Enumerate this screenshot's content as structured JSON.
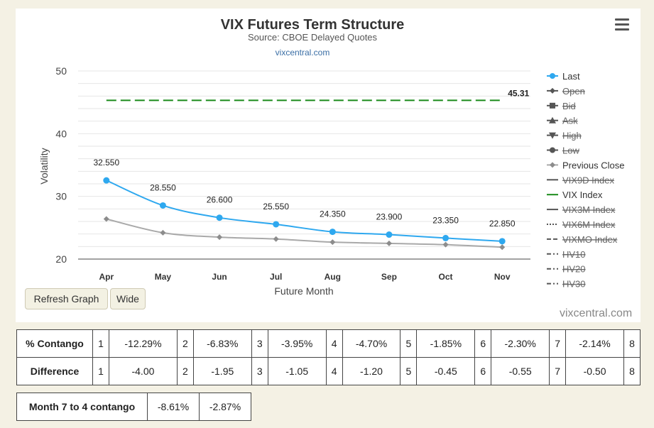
{
  "chart_data": {
    "type": "line",
    "title": "VIX Futures Term Structure",
    "subtitle": "Source: CBOE Delayed Quotes",
    "credit_top": "vixcentral.com",
    "credit_bottom": "vixcentral.com",
    "xlabel": "Future Month",
    "ylabel": "Volatility",
    "categories": [
      "Apr",
      "May",
      "Jun",
      "Jul",
      "Aug",
      "Sep",
      "Oct",
      "Nov"
    ],
    "ylim": [
      20,
      50
    ],
    "yticks": [
      "20",
      "30",
      "40",
      "50"
    ],
    "grid": true,
    "legend_position": "right",
    "series": [
      {
        "name": "Last",
        "values": [
          32.55,
          28.55,
          26.6,
          25.55,
          24.35,
          23.9,
          23.35,
          22.85
        ],
        "labels": [
          "32.550",
          "28.550",
          "26.600",
          "25.550",
          "24.350",
          "23.900",
          "23.350",
          "22.850"
        ],
        "color": "#2ea8ef"
      },
      {
        "name": "Previous Close",
        "values": [
          26.4,
          24.2,
          23.5,
          23.2,
          22.7,
          22.5,
          22.3,
          21.9
        ],
        "color": "#a9a9a9"
      },
      {
        "name": "VIX Index",
        "values": [
          45.31,
          45.31,
          45.31,
          45.31,
          45.31,
          45.31,
          45.31,
          45.31
        ],
        "end_label": "45.31",
        "color": "#1a8a1a"
      }
    ],
    "legend": [
      {
        "label": "Last",
        "enabled": true,
        "color": "#2ea8ef",
        "symbol": "circle",
        "line": "solid"
      },
      {
        "label": "Open",
        "enabled": false,
        "color": "#666666",
        "symbol": "diamond",
        "line": "solid"
      },
      {
        "label": "Bid",
        "enabled": false,
        "color": "#555555",
        "symbol": "square",
        "line": "solid"
      },
      {
        "label": "Ask",
        "enabled": false,
        "color": "#555555",
        "symbol": "triangle",
        "line": "solid"
      },
      {
        "label": "High",
        "enabled": false,
        "color": "#555555",
        "symbol": "triangle-down",
        "line": "solid"
      },
      {
        "label": "Low",
        "enabled": false,
        "color": "#555555",
        "symbol": "circle",
        "line": "solid"
      },
      {
        "label": "Previous Close",
        "enabled": true,
        "color": "#a9a9a9",
        "symbol": "diamond",
        "line": "solid"
      },
      {
        "label": "VIX9D Index",
        "enabled": false,
        "color": "#666666",
        "symbol": "none",
        "line": "solid"
      },
      {
        "label": "VIX Index",
        "enabled": true,
        "color": "#1a8a1a",
        "symbol": "none",
        "line": "solid"
      },
      {
        "label": "VIX3M Index",
        "enabled": false,
        "color": "#666666",
        "symbol": "none",
        "line": "solid"
      },
      {
        "label": "VIX6M Index",
        "enabled": false,
        "color": "#666666",
        "symbol": "none",
        "line": "dotted"
      },
      {
        "label": "VIXMO Index",
        "enabled": false,
        "color": "#666666",
        "symbol": "none",
        "line": "dashed"
      },
      {
        "label": "HV10",
        "enabled": false,
        "color": "#666666",
        "symbol": "none",
        "line": "dashdot"
      },
      {
        "label": "HV20",
        "enabled": false,
        "color": "#666666",
        "symbol": "none",
        "line": "dashdot"
      },
      {
        "label": "HV30",
        "enabled": false,
        "color": "#666666",
        "symbol": "none",
        "line": "dashdot"
      }
    ]
  },
  "controls": {
    "refresh_label": "Refresh Graph",
    "wide_label": "Wide",
    "menu_icon": "hamburger-menu-icon"
  },
  "contango_table": {
    "rows": [
      {
        "label": "% Contango",
        "cells": [
          [
            "1",
            "-12.29%"
          ],
          [
            "2",
            "-6.83%"
          ],
          [
            "3",
            "-3.95%"
          ],
          [
            "4",
            "-4.70%"
          ],
          [
            "5",
            "-1.85%"
          ],
          [
            "6",
            "-2.30%"
          ],
          [
            "7",
            "-2.14%"
          ]
        ],
        "last_index": "8"
      },
      {
        "label": "Difference",
        "cells": [
          [
            "1",
            "-4.00"
          ],
          [
            "2",
            "-1.95"
          ],
          [
            "3",
            "-1.05"
          ],
          [
            "4",
            "-1.20"
          ],
          [
            "5",
            "-0.45"
          ],
          [
            "6",
            "-0.55"
          ],
          [
            "7",
            "-0.50"
          ]
        ],
        "last_index": "8"
      }
    ]
  },
  "month_contango": {
    "label": "Month 7 to 4 contango",
    "values": [
      "-8.61%",
      "-2.87%"
    ]
  }
}
